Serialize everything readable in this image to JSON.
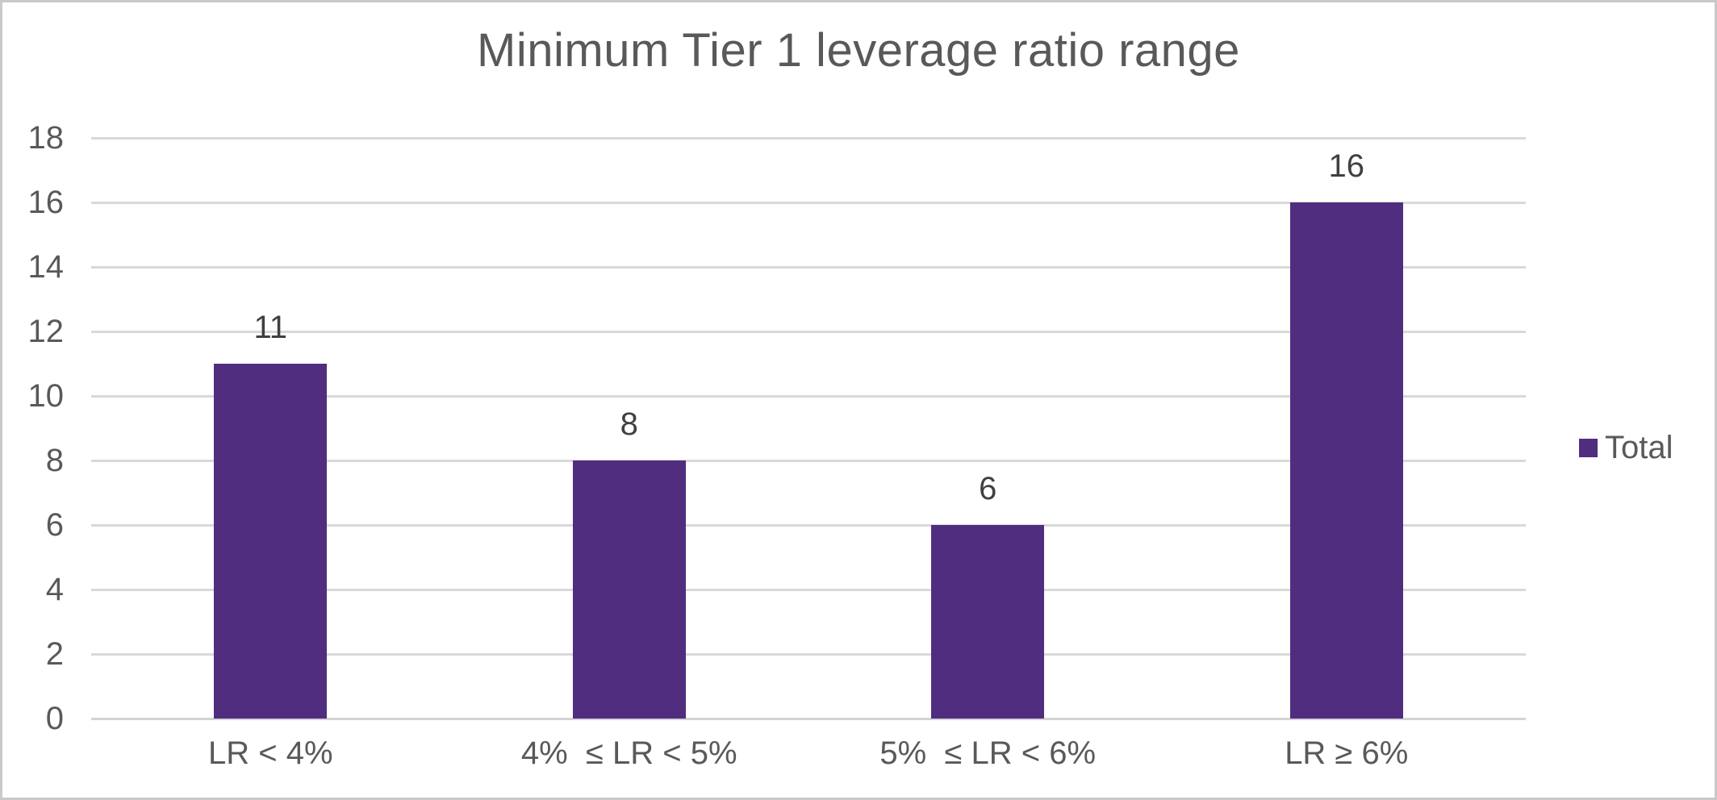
{
  "chart_data": {
    "type": "bar",
    "title": "Minimum Tier 1 leverage ratio range",
    "categories": [
      "LR < 4%",
      "4%  ≤ LR < 5%",
      "5%  ≤ LR < 6%",
      "LR ≥ 6%"
    ],
    "series": [
      {
        "name": "Total",
        "values": [
          11,
          8,
          6,
          16
        ]
      }
    ],
    "data_labels": [
      "11",
      "8",
      "6",
      "16"
    ],
    "xlabel": "",
    "ylabel": "",
    "ylim": [
      0,
      18
    ],
    "yticks": [
      0,
      2,
      4,
      6,
      8,
      10,
      12,
      14,
      16,
      18
    ],
    "grid": true,
    "legend_position": "right",
    "colors": {
      "bar": "#512d80",
      "gridline": "#d9d9d9",
      "axis_line": "#d3d3d3",
      "title_text": "#595959",
      "tick_text": "#595959",
      "category_text": "#595959",
      "data_label_text": "#404040",
      "legend_text": "#595959",
      "frame_border": "#c9c9c9",
      "background": "#ffffff"
    }
  },
  "legend": {
    "label": "Total"
  }
}
